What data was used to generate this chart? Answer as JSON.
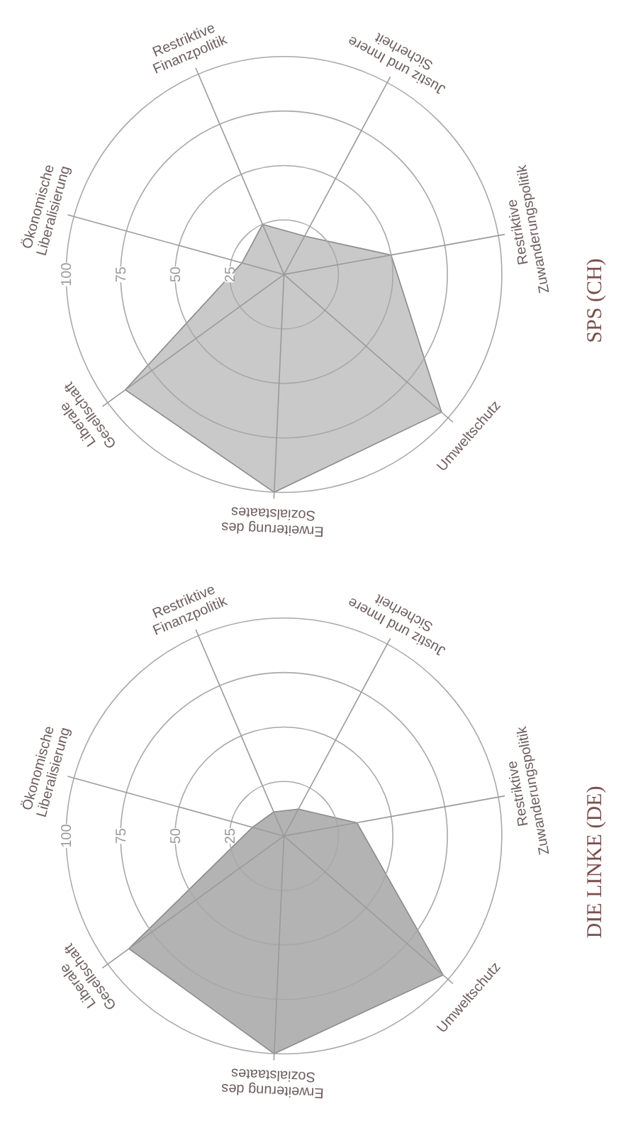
{
  "chart_data": [
    {
      "type": "radar",
      "title": "SPS (CH)",
      "categories": [
        "Restriktive\nFinanzpolitik",
        "Justiz und Innere\nSicherheit",
        "Restriktive\nZuwanderungspolitik",
        "Umweltschutz",
        "Erweiterung des\nSozialstaates",
        "Liberale\nGesellschaft",
        "Ökonomische\nLiberalisierung"
      ],
      "series": [
        {
          "color": "#c9c9c9",
          "values": [
            25,
            20,
            50,
            96,
            100,
            90,
            20
          ]
        }
      ],
      "ylim": [
        0,
        100
      ],
      "yticks": [
        25,
        50,
        75,
        100
      ],
      "grid": true
    },
    {
      "type": "radar",
      "title": "DIE LINKE (DE)",
      "categories": [
        "Restriktive\nFinanzpolitik",
        "Justiz und Innere\nSicherheit",
        "Restriktive\nZuwanderungspolitik",
        "Umweltschutz",
        "Erweiterung des\nSozialstaates",
        "Liberale\nGesellschaft",
        "Ökonomische\nLiberalisierung"
      ],
      "series": [
        {
          "color": "#b3b3b3",
          "values": [
            12,
            14,
            34,
            97,
            100,
            88,
            15
          ]
        }
      ],
      "ylim": [
        0,
        100
      ],
      "yticks": [
        25,
        50,
        75,
        100
      ],
      "grid": true
    }
  ]
}
